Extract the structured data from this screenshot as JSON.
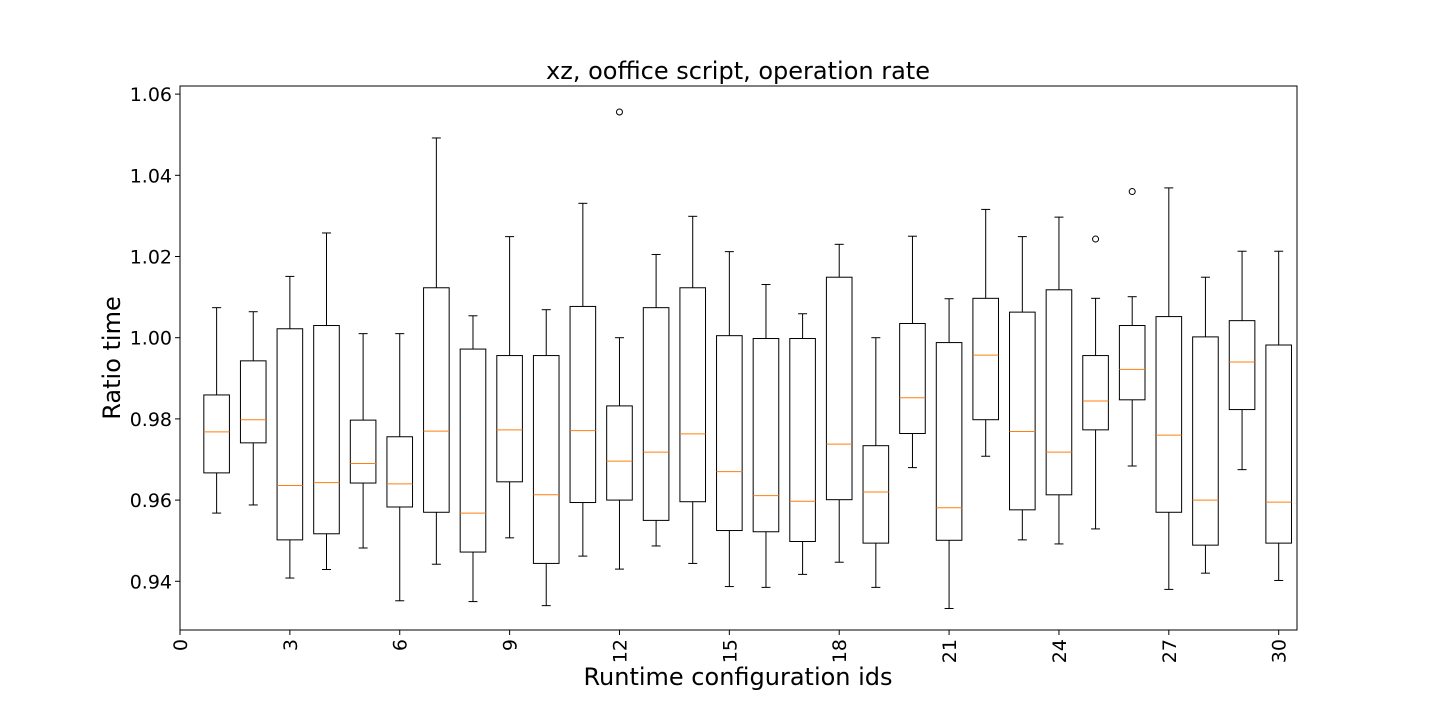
{
  "chart_data": {
    "type": "box",
    "title": "xz, ooffice script, operation rate",
    "xlabel": "Runtime configuration ids",
    "ylabel": "Ratio time",
    "xlim": [
      0,
      30.5
    ],
    "ylim": [
      0.928,
      1.062
    ],
    "xticks": [
      0,
      3,
      6,
      9,
      12,
      15,
      18,
      21,
      24,
      27,
      30
    ],
    "yticks": [
      0.94,
      0.96,
      0.98,
      1.0,
      1.02,
      1.04,
      1.06
    ],
    "ytick_labels": [
      "0.94",
      "0.96",
      "0.98",
      "1.00",
      "1.02",
      "1.04",
      "1.06"
    ],
    "grid": false,
    "colors": {
      "box": "#000000",
      "median": "#ff7f0e",
      "background": "#ffffff"
    },
    "boxes": [
      {
        "id": 1,
        "whislo": 0.9568,
        "q1": 0.9667,
        "med": 0.9768,
        "q3": 0.9859,
        "whishi": 1.0074,
        "fliers": []
      },
      {
        "id": 2,
        "whislo": 0.9588,
        "q1": 0.9741,
        "med": 0.9798,
        "q3": 0.9943,
        "whishi": 1.0064,
        "fliers": []
      },
      {
        "id": 3,
        "whislo": 0.9408,
        "q1": 0.9502,
        "med": 0.9636,
        "q3": 1.0022,
        "whishi": 1.0151,
        "fliers": []
      },
      {
        "id": 4,
        "whislo": 0.9429,
        "q1": 0.9517,
        "med": 0.9643,
        "q3": 1.003,
        "whishi": 1.0258,
        "fliers": []
      },
      {
        "id": 5,
        "whislo": 0.9482,
        "q1": 0.9642,
        "med": 0.969,
        "q3": 0.9797,
        "whishi": 1.001,
        "fliers": []
      },
      {
        "id": 6,
        "whislo": 0.9352,
        "q1": 0.9583,
        "med": 0.964,
        "q3": 0.9756,
        "whishi": 1.001,
        "fliers": []
      },
      {
        "id": 7,
        "whislo": 0.9442,
        "q1": 0.957,
        "med": 0.977,
        "q3": 1.0123,
        "whishi": 1.0492,
        "fliers": []
      },
      {
        "id": 8,
        "whislo": 0.935,
        "q1": 0.9472,
        "med": 0.9568,
        "q3": 0.9972,
        "whishi": 1.0054,
        "fliers": []
      },
      {
        "id": 9,
        "whislo": 0.9507,
        "q1": 0.9645,
        "med": 0.9773,
        "q3": 0.9956,
        "whishi": 1.0249,
        "fliers": []
      },
      {
        "id": 10,
        "whislo": 0.934,
        "q1": 0.9444,
        "med": 0.9613,
        "q3": 0.9956,
        "whishi": 1.0069,
        "fliers": []
      },
      {
        "id": 11,
        "whislo": 0.9462,
        "q1": 0.9594,
        "med": 0.9771,
        "q3": 1.0077,
        "whishi": 1.0331,
        "fliers": []
      },
      {
        "id": 12,
        "whislo": 0.943,
        "q1": 0.96,
        "med": 0.9696,
        "q3": 0.9832,
        "whishi": 1.0,
        "fliers": [
          1.0556
        ]
      },
      {
        "id": 13,
        "whislo": 0.9487,
        "q1": 0.955,
        "med": 0.9718,
        "q3": 1.0074,
        "whishi": 1.0205,
        "fliers": []
      },
      {
        "id": 14,
        "whislo": 0.9444,
        "q1": 0.9596,
        "med": 0.9763,
        "q3": 1.0123,
        "whishi": 1.0299,
        "fliers": []
      },
      {
        "id": 15,
        "whislo": 0.9387,
        "q1": 0.9525,
        "med": 0.967,
        "q3": 1.0005,
        "whishi": 1.0212,
        "fliers": []
      },
      {
        "id": 16,
        "whislo": 0.9385,
        "q1": 0.9522,
        "med": 0.9611,
        "q3": 0.9998,
        "whishi": 1.0131,
        "fliers": []
      },
      {
        "id": 17,
        "whislo": 0.9417,
        "q1": 0.9498,
        "med": 0.9597,
        "q3": 0.9998,
        "whishi": 1.0059,
        "fliers": []
      },
      {
        "id": 18,
        "whislo": 0.9447,
        "q1": 0.9601,
        "med": 0.9738,
        "q3": 1.0149,
        "whishi": 1.023,
        "fliers": []
      },
      {
        "id": 19,
        "whislo": 0.9385,
        "q1": 0.9494,
        "med": 0.962,
        "q3": 0.9734,
        "whishi": 1.0,
        "fliers": []
      },
      {
        "id": 20,
        "whislo": 0.968,
        "q1": 0.9764,
        "med": 0.9852,
        "q3": 1.0035,
        "whishi": 1.025,
        "fliers": []
      },
      {
        "id": 21,
        "whislo": 0.9333,
        "q1": 0.9501,
        "med": 0.9581,
        "q3": 0.9988,
        "whishi": 1.0096,
        "fliers": []
      },
      {
        "id": 22,
        "whislo": 0.9708,
        "q1": 0.9798,
        "med": 0.9957,
        "q3": 1.0097,
        "whishi": 1.0316,
        "fliers": []
      },
      {
        "id": 23,
        "whislo": 0.9502,
        "q1": 0.9576,
        "med": 0.9769,
        "q3": 1.0063,
        "whishi": 1.0249,
        "fliers": []
      },
      {
        "id": 24,
        "whislo": 0.9492,
        "q1": 0.9613,
        "med": 0.9718,
        "q3": 1.0118,
        "whishi": 1.0297,
        "fliers": []
      },
      {
        "id": 25,
        "whislo": 0.9529,
        "q1": 0.9773,
        "med": 0.9844,
        "q3": 0.9956,
        "whishi": 1.0097,
        "fliers": [
          1.0243
        ]
      },
      {
        "id": 26,
        "whislo": 0.9684,
        "q1": 0.9847,
        "med": 0.9922,
        "q3": 1.003,
        "whishi": 1.0101,
        "fliers": [
          1.036
        ]
      },
      {
        "id": 27,
        "whislo": 0.938,
        "q1": 0.957,
        "med": 0.976,
        "q3": 1.0052,
        "whishi": 1.0369,
        "fliers": []
      },
      {
        "id": 28,
        "whislo": 0.942,
        "q1": 0.9489,
        "med": 0.96,
        "q3": 1.0002,
        "whishi": 1.0149,
        "fliers": []
      },
      {
        "id": 29,
        "whislo": 0.9675,
        "q1": 0.9823,
        "med": 0.994,
        "q3": 1.0042,
        "whishi": 1.0213,
        "fliers": []
      },
      {
        "id": 30,
        "whislo": 0.9402,
        "q1": 0.9494,
        "med": 0.9595,
        "q3": 0.9982,
        "whishi": 1.0213,
        "fliers": []
      }
    ]
  }
}
